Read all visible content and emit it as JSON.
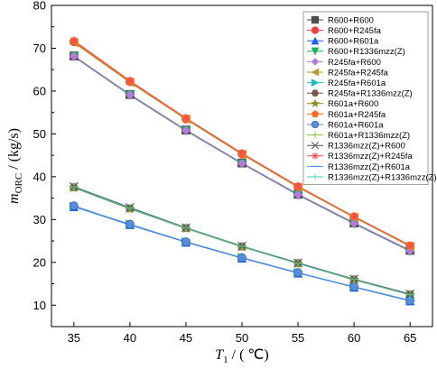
{
  "chart_data": {
    "type": "line",
    "x_label_parts": [
      "T",
      "1",
      " / ( ℃)"
    ],
    "y_label_parts": [
      "m",
      "ORC",
      " / (kg/s)"
    ],
    "xlim": [
      33,
      67
    ],
    "ylim": [
      5,
      80
    ],
    "x_ticks": [
      "35",
      "40",
      "45",
      "50",
      "55",
      "60",
      "65"
    ],
    "y_ticks": [
      "10",
      "20",
      "30",
      "40",
      "50",
      "60",
      "70",
      "80"
    ],
    "x": [
      35,
      40,
      45,
      50,
      55,
      60,
      65
    ],
    "legend_placement": "top-right",
    "series": [
      {
        "name": "R600+R600",
        "color": "#4d4d4d",
        "marker": "square",
        "values": [
          68.2,
          59.2,
          50.9,
          43.2,
          35.9,
          29.2,
          22.8
        ]
      },
      {
        "name": "R600+R245fa",
        "color": "#ff3b3b",
        "marker": "circle",
        "values": [
          71.5,
          62.2,
          53.5,
          45.3,
          37.6,
          30.6,
          23.8
        ]
      },
      {
        "name": "R600+R601a",
        "color": "#1f5cff",
        "marker": "triangle-up",
        "values": [
          33.0,
          28.8,
          24.7,
          21.0,
          17.5,
          14.2,
          11.0
        ]
      },
      {
        "name": "R600+R1336mzz(Z)",
        "color": "#16b45a",
        "marker": "triangle-down",
        "values": [
          68.0,
          59.0,
          50.7,
          43.0,
          35.7,
          29.0,
          22.6
        ]
      },
      {
        "name": "R245fa+R600",
        "color": "#b57bdc",
        "marker": "diamond",
        "values": [
          68.1,
          59.1,
          50.8,
          43.1,
          35.8,
          29.1,
          22.7
        ]
      },
      {
        "name": "R245fa+R245fa",
        "color": "#b39b2e",
        "marker": "triangle-left",
        "values": [
          71.3,
          62.0,
          53.4,
          45.2,
          37.5,
          30.5,
          23.7
        ]
      },
      {
        "name": "R245fa+R601a",
        "color": "#1bbfc4",
        "marker": "triangle-right",
        "values": [
          33.1,
          28.9,
          24.8,
          21.1,
          17.6,
          14.3,
          11.1
        ]
      },
      {
        "name": "R245fa+R1336mzz(Z)",
        "color": "#7a5a4a",
        "marker": "hexagon",
        "values": [
          37.5,
          32.6,
          28.0,
          23.7,
          19.8,
          16.0,
          12.5
        ]
      },
      {
        "name": "R601a+R600",
        "color": "#8a8a1e",
        "marker": "star",
        "values": [
          37.4,
          32.5,
          27.9,
          23.6,
          19.7,
          15.9,
          12.4
        ]
      },
      {
        "name": "R601a+R245fa",
        "color": "#ff6a13",
        "marker": "pentagon",
        "values": [
          71.6,
          62.3,
          53.6,
          45.4,
          37.7,
          30.7,
          23.9
        ]
      },
      {
        "name": "R601a+R601a",
        "color": "#5b8fd6",
        "marker": "sphere",
        "values": [
          33.2,
          28.9,
          24.8,
          21.1,
          17.6,
          14.3,
          11.1
        ]
      },
      {
        "name": "R601a+R1336mzz(Z)",
        "color": "#8ec63f",
        "marker": "plus",
        "values": [
          37.6,
          32.7,
          28.1,
          23.8,
          19.8,
          16.1,
          12.5
        ]
      },
      {
        "name": "R1336mzz(Z)+R600",
        "color": "#555555",
        "marker": "x",
        "values": [
          37.7,
          32.8,
          28.1,
          23.8,
          19.9,
          16.1,
          12.6
        ]
      },
      {
        "name": "R1336mzz(Z)+R245fa",
        "color": "#ff4d4d",
        "marker": "asterisk",
        "values": [
          71.8,
          62.4,
          53.7,
          45.5,
          37.8,
          30.7,
          24.0
        ]
      },
      {
        "name": "R1336mzz(Z)+R601a",
        "color": "#4a8ae8",
        "marker": "line",
        "values": [
          33.0,
          28.7,
          24.7,
          21.0,
          17.5,
          14.2,
          11.0
        ]
      },
      {
        "name": "R1336mzz(Z)+R1336mzz(Z)",
        "color": "#3cc7b5",
        "marker": "plus-thin",
        "values": [
          37.5,
          32.6,
          28.0,
          23.7,
          19.7,
          16.0,
          12.4
        ]
      }
    ]
  }
}
